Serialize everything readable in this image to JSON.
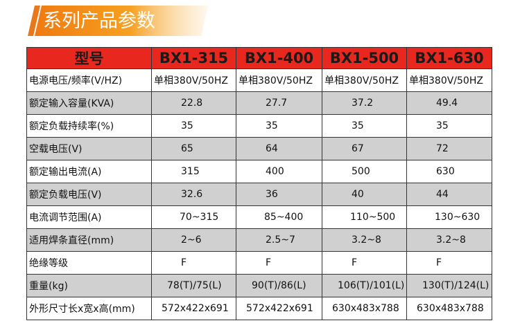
{
  "header": {
    "title": "系列产品参数"
  },
  "table": {
    "columns": [
      "型号",
      "BX1-315",
      "BX1-400",
      "BX1-500",
      "BX1-630"
    ],
    "rows": [
      [
        "电源电压/频率(V/HZ)",
        "单相380V/50HZ",
        "单相380V/50HZ",
        "单相380V/50HZ",
        "单相380V/50HZ"
      ],
      [
        "额定输入容量(KVA)",
        "22.8",
        "27.7",
        "37.2",
        "49.4"
      ],
      [
        "额定负载持续率(%)",
        "35",
        "35",
        "35",
        "35"
      ],
      [
        "空载电压(V)",
        "65",
        "64",
        "67",
        "72"
      ],
      [
        "额定输出电流(A)",
        "315",
        "400",
        "500",
        "630"
      ],
      [
        "额定负载电压(V)",
        "32.6",
        "36",
        "40",
        "44"
      ],
      [
        "电流调节范围(A)",
        "70~315",
        "85~400",
        "110~500",
        "130~630"
      ],
      [
        "适用焊条直径(mm)",
        "2~6",
        "2.5~7",
        "3.2~8",
        "3.2~8"
      ],
      [
        "绝缘等级",
        "F",
        "F",
        "F",
        "F"
      ],
      [
        "重量(kg)",
        "78(T)/75(L)",
        "90(T)/86(L)",
        "106(T)/101(L)",
        "130(T)/124(L)"
      ],
      [
        "外形尺寸长x宽x高(mm)",
        "572x422x691",
        "572x422x691",
        "630x483x788",
        "630x483x788"
      ]
    ]
  }
}
